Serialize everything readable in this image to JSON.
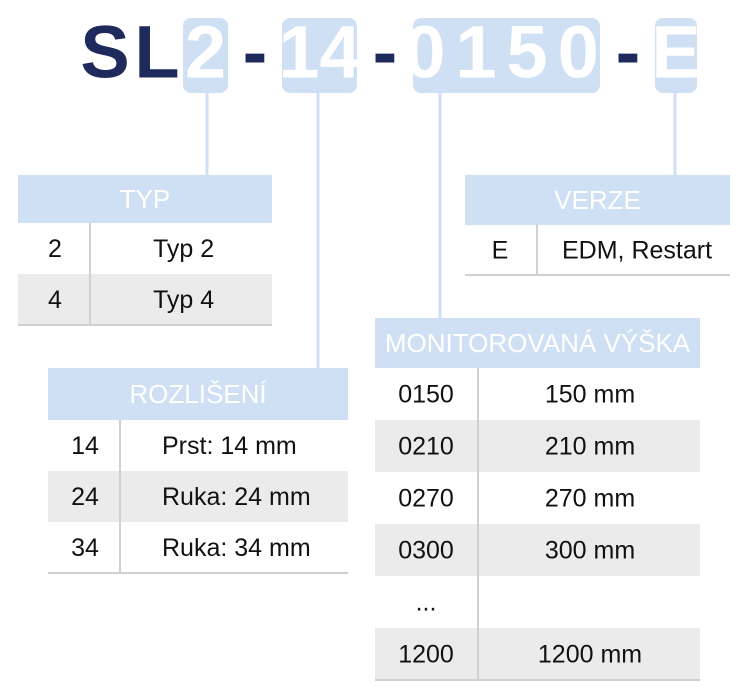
{
  "code": {
    "parts": [
      "S",
      "L",
      "2",
      "-",
      "14",
      "-",
      "0150",
      "-",
      "E"
    ]
  },
  "tables": {
    "typ": {
      "header": "TYP",
      "rows": [
        [
          "2",
          "Typ 2"
        ],
        [
          "4",
          "Typ 4"
        ]
      ]
    },
    "verze": {
      "header": "VERZE",
      "rows": [
        [
          "E",
          "EDM, Restart"
        ]
      ]
    },
    "vyska": {
      "header": "MONITOROVANÁ VÝŠKA",
      "rows": [
        [
          "0150",
          "150 mm"
        ],
        [
          "0210",
          "210 mm"
        ],
        [
          "0270",
          "270 mm"
        ],
        [
          "0300",
          "300 mm"
        ],
        [
          "..."
        ],
        [
          "1200",
          "1200 mm"
        ]
      ]
    },
    "rozliseni": {
      "header": "ROZLIŠENÍ",
      "rows": [
        [
          "14",
          "Prst: 14 mm"
        ],
        [
          "24",
          "Ruka: 24 mm"
        ],
        [
          "34",
          "Ruka: 34 mm"
        ]
      ]
    }
  }
}
